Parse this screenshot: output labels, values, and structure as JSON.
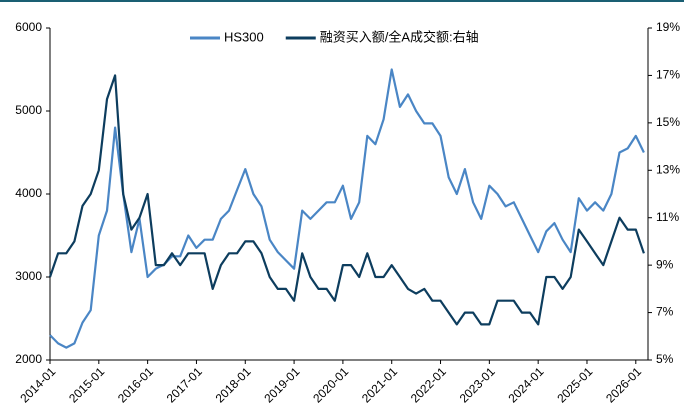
{
  "chart_data": {
    "type": "line",
    "x": [
      "2014-01",
      "2014-03",
      "2014-05",
      "2014-07",
      "2014-09",
      "2014-11",
      "2015-01",
      "2015-03",
      "2015-05",
      "2015-07",
      "2015-09",
      "2015-11",
      "2016-01",
      "2016-03",
      "2016-05",
      "2016-07",
      "2016-09",
      "2016-11",
      "2017-01",
      "2017-03",
      "2017-05",
      "2017-07",
      "2017-09",
      "2017-11",
      "2018-01",
      "2018-03",
      "2018-05",
      "2018-07",
      "2018-09",
      "2018-11",
      "2019-01",
      "2019-03",
      "2019-05",
      "2019-07",
      "2019-09",
      "2019-11",
      "2020-01",
      "2020-03",
      "2020-05",
      "2020-07",
      "2020-09",
      "2020-11",
      "2021-01",
      "2021-03",
      "2021-05",
      "2021-07",
      "2021-09",
      "2021-11",
      "2022-01",
      "2022-03",
      "2022-05",
      "2022-07",
      "2022-09",
      "2022-11",
      "2023-01",
      "2023-03",
      "2023-05",
      "2023-07",
      "2023-09",
      "2023-11",
      "2024-01",
      "2024-03",
      "2024-05",
      "2024-07",
      "2024-09",
      "2024-11",
      "2025-01",
      "2025-03",
      "2025-05",
      "2025-07",
      "2025-09",
      "2025-11",
      "2026-01",
      "2026-03"
    ],
    "series": [
      {
        "name": "HS300",
        "color": "#4a86c5",
        "values": [
          2300,
          2200,
          2150,
          2200,
          2450,
          2600,
          3500,
          3800,
          4800,
          4000,
          3300,
          3700,
          3000,
          3100,
          3150,
          3250,
          3250,
          3500,
          3350,
          3450,
          3450,
          3700,
          3800,
          4050,
          4300,
          4000,
          3850,
          3450,
          3300,
          3200,
          3100,
          3800,
          3700,
          3800,
          3900,
          3900,
          4100,
          3700,
          3900,
          4700,
          4600,
          4900,
          5500,
          5050,
          5200,
          5000,
          4850,
          4850,
          4700,
          4200,
          4000,
          4300,
          3900,
          3700,
          4100,
          4000,
          3850,
          3900,
          3700,
          3500,
          3300,
          3550,
          3650,
          3450,
          3300,
          3950,
          3800,
          3900,
          3800,
          4000,
          4500,
          4550,
          4700,
          4500
        ]
      },
      {
        "name": "融资买入额/全A成交额:右轴",
        "color": "#0d3d5e",
        "axis": "y2",
        "values": [
          8.5,
          9.5,
          9.5,
          10,
          11.5,
          12,
          13,
          16,
          17,
          12,
          10.5,
          11,
          12,
          9,
          9,
          9.5,
          9,
          9.5,
          9.5,
          9.5,
          8,
          9,
          9.5,
          9.5,
          10,
          10,
          9.5,
          8.5,
          8,
          8,
          7.5,
          9.5,
          8.5,
          8,
          8,
          7.5,
          9,
          9,
          8.5,
          9.5,
          8.5,
          8.5,
          9,
          8.5,
          8,
          7.8,
          8,
          7.5,
          7.5,
          7,
          6.5,
          7,
          7,
          6.5,
          6.5,
          7.5,
          7.5,
          7.5,
          7,
          7,
          6.5,
          8.5,
          8.5,
          8,
          8.5,
          10.5,
          10,
          9.5,
          9,
          10,
          11,
          10.5,
          10.5,
          9.5
        ]
      }
    ],
    "xlim": [
      "2014-01",
      "2026-04"
    ],
    "xticks": [
      "2014-01",
      "2015-01",
      "2016-01",
      "2017-01",
      "2018-01",
      "2019-01",
      "2020-01",
      "2021-01",
      "2022-01",
      "2023-01",
      "2024-01",
      "2025-01",
      "2026-01"
    ],
    "ylim": [
      2000,
      6000
    ],
    "yticks": [
      2000,
      3000,
      4000,
      5000,
      6000
    ],
    "y2lim": [
      5,
      19
    ],
    "y2ticks": [
      {
        "value": 5,
        "label": "5%"
      },
      {
        "value": 7,
        "label": "7%"
      },
      {
        "value": 9,
        "label": "9%"
      },
      {
        "value": 11,
        "label": "11%"
      },
      {
        "value": 13,
        "label": "13%"
      },
      {
        "value": 15,
        "label": "15%"
      },
      {
        "value": 17,
        "label": "17%"
      },
      {
        "value": 19,
        "label": "19%"
      }
    ],
    "legend": "top"
  }
}
